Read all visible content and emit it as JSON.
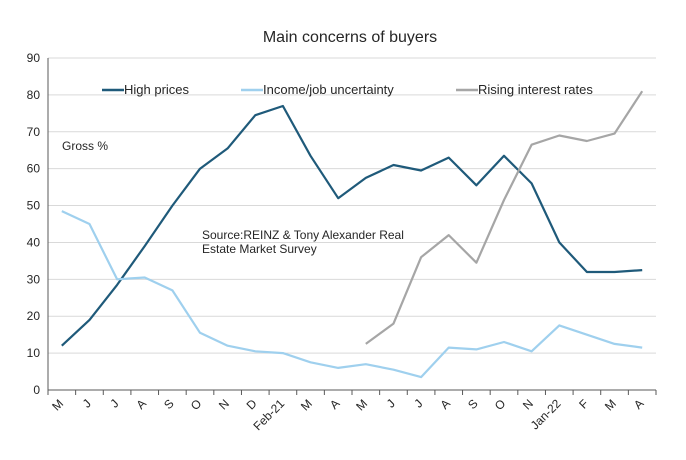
{
  "chart_data": {
    "type": "line",
    "title": "Main concerns of buyers",
    "xlabel": "",
    "ylabel": "",
    "ylim": [
      0,
      90
    ],
    "yticks": [
      0,
      10,
      20,
      30,
      40,
      50,
      60,
      70,
      80,
      90
    ],
    "grid": true,
    "legend_position": "top",
    "annotations": {
      "measure": "Gross %",
      "source_line1": "Source:REINZ & Tony Alexander Real",
      "source_line2": "Estate Market Survey"
    },
    "categories": [
      "M",
      "J",
      "J",
      "A",
      "S",
      "O",
      "N",
      "D",
      "Feb-21",
      "M",
      "A",
      "M",
      "J",
      "J",
      "A",
      "S",
      "O",
      "N",
      "Jan-22",
      "F",
      "M",
      "A"
    ],
    "series": [
      {
        "name": "High prices",
        "color": "#1f5a7a",
        "values": [
          12,
          19,
          28.5,
          39,
          50,
          60,
          65.5,
          74.5,
          77,
          63.5,
          52,
          57.5,
          61,
          59.5,
          63,
          55.5,
          63.5,
          56,
          40,
          32,
          32,
          32.5
        ]
      },
      {
        "name": "Income/job uncertainty",
        "color": "#9fd0ee",
        "values": [
          48.5,
          45,
          30,
          30.5,
          27,
          15.5,
          12,
          10.5,
          10,
          7.5,
          6,
          7,
          5.5,
          3.5,
          11.5,
          11,
          13,
          10.5,
          17.5,
          15,
          12.5,
          11.5
        ]
      },
      {
        "name": "Rising interest rates",
        "color": "#a6a6a6",
        "values": [
          null,
          null,
          null,
          null,
          null,
          null,
          null,
          null,
          null,
          null,
          null,
          12.5,
          18,
          36,
          42,
          34.5,
          51.5,
          66.5,
          69,
          67.5,
          69.5,
          81
        ]
      }
    ]
  }
}
